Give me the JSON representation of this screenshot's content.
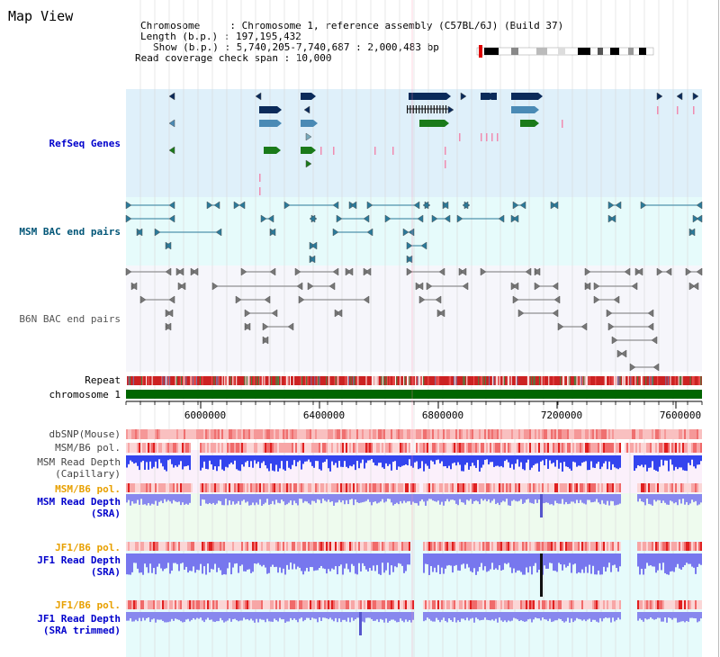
{
  "view_title": "Map View",
  "info": {
    "chromosome": "Chromosome     : Chromosome 1, reference assembly (C57BL/6J) (Build 37)",
    "length": "Length (b.p.) : 197,195,432",
    "show": "Show (b.p.) : 5,740,205-7,740,687 : 2,000,483 bp",
    "coverage": "Read coverage check span : 10,000"
  },
  "tracks": {
    "refseq": "RefSeq Genes",
    "msm_bac": "MSM BAC end pairs",
    "b6n_bac": "B6N BAC end pairs",
    "repeat": "Repeat",
    "chromosome": "chromosome 1",
    "dbsnp": "dbSNP(Mouse)",
    "msm_b6_pol_1": "MSM/B6 pol.",
    "msm_read_depth_cap": "MSM Read Depth\n(Capillary)",
    "msm_b6_pol_2": "MSM/B6 pol.",
    "msm_read_depth_sra": "MSM Read Depth\n(SRA)",
    "jf1_b6_pol_1": "JF1/B6 pol.",
    "jf1_read_depth_sra": "JF1 Read Depth\n(SRA)",
    "jf1_b6_pol_2": "JF1/B6 pol.",
    "jf1_read_depth_trim": "JF1 Read Depth\n(SRA trimmed)"
  },
  "axis": {
    "ticks": [
      "6000000",
      "6400000",
      "6800000",
      "7200000",
      "7600000"
    ]
  },
  "colors": {
    "refseq_bg": "#dff0fa",
    "msm_bg": "#e6fbfb",
    "b6n_bg": "#f6f6fb",
    "chromosome": "#006600",
    "dark_navy": "#0a2a5a",
    "steel_blue": "#4a8ab5",
    "green": "#1a7a1a",
    "read_depth_blue": "#3333ee"
  }
}
